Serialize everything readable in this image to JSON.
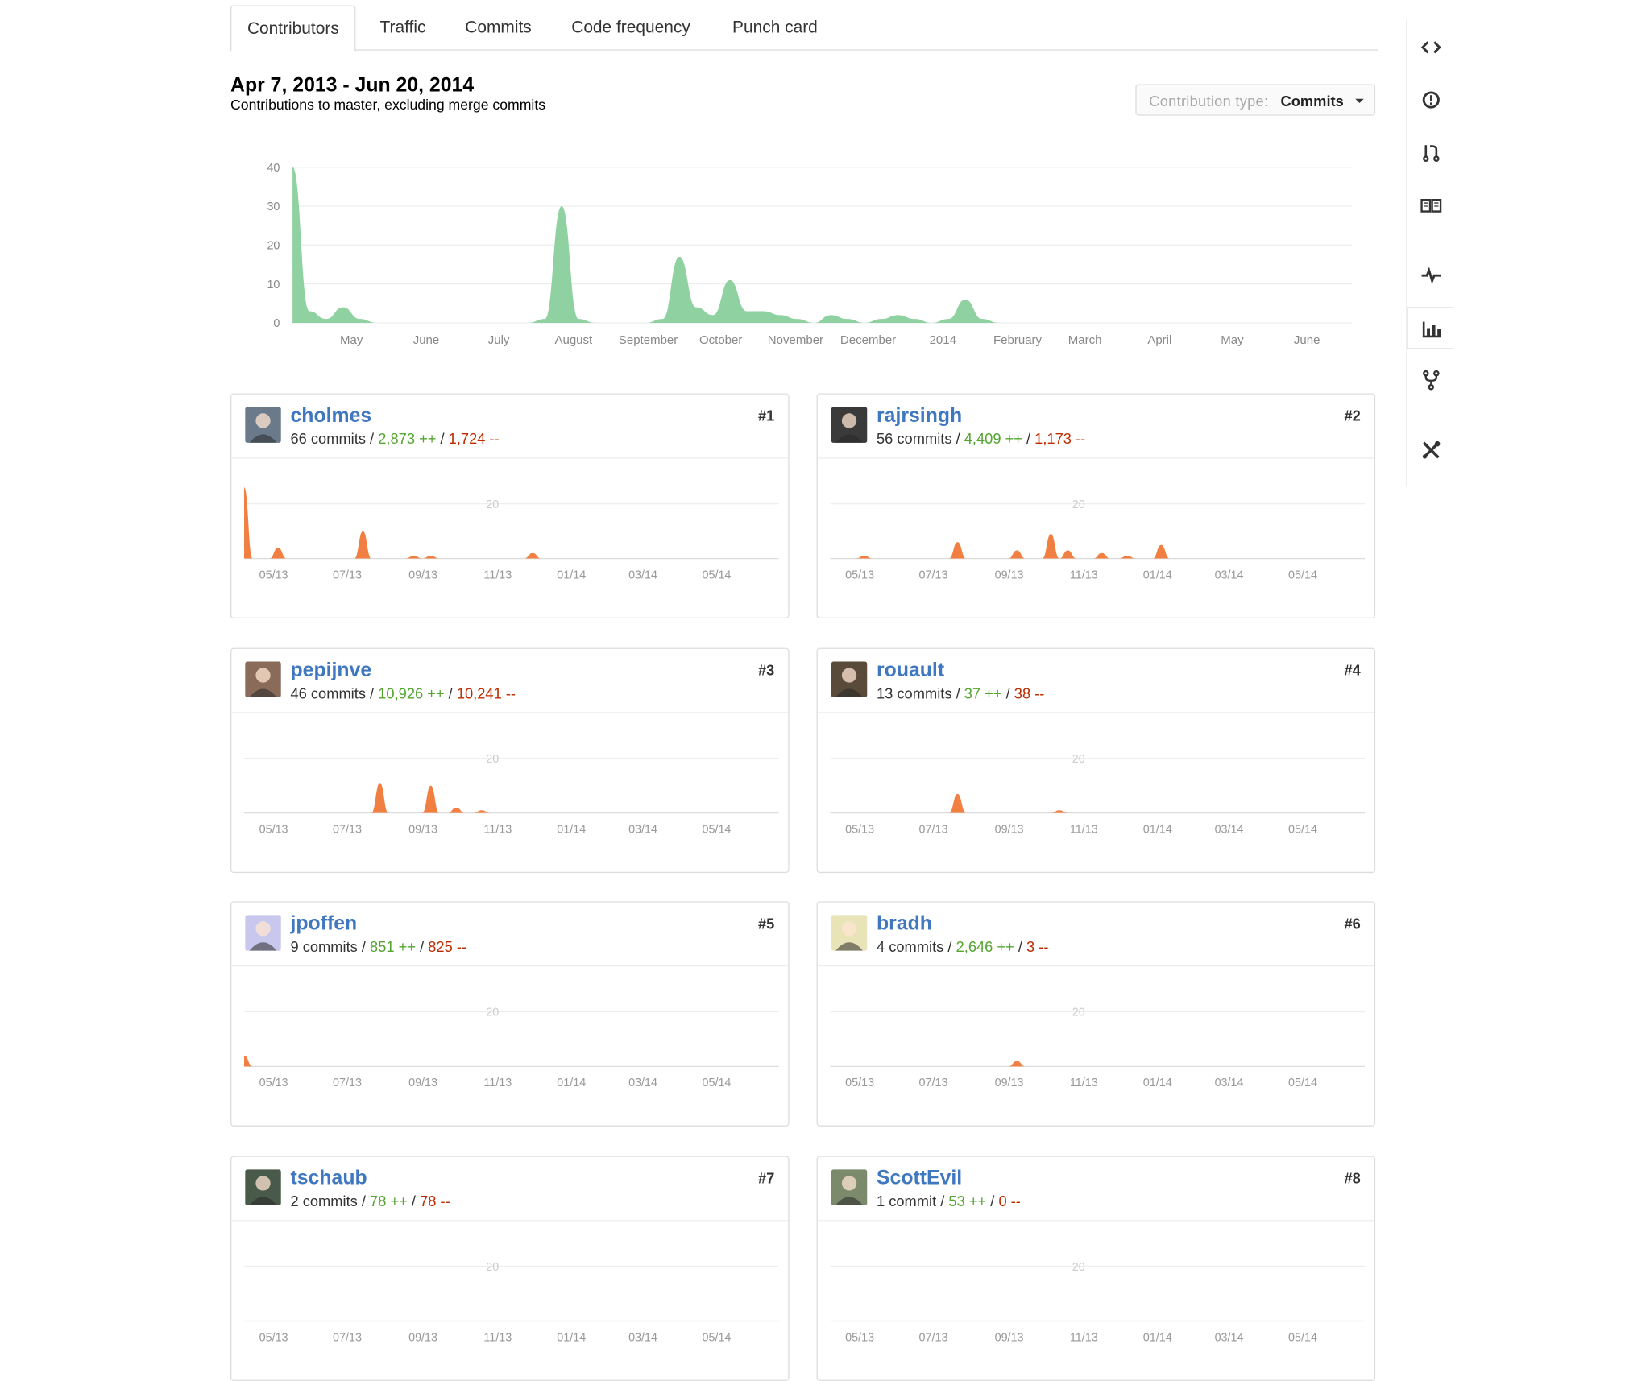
{
  "tabs": [
    {
      "label": "Contributors",
      "selected": true
    },
    {
      "label": "Traffic",
      "selected": false
    },
    {
      "label": "Commits",
      "selected": false
    },
    {
      "label": "Code frequency",
      "selected": false
    },
    {
      "label": "Punch card",
      "selected": false
    }
  ],
  "header": {
    "date_range": "Apr 7, 2013 - Jun 20, 2014",
    "subtitle": "Contributions to master, excluding merge commits"
  },
  "contribution_type": {
    "label": "Contribution type:",
    "value": "Commits"
  },
  "sidebar": [
    {
      "icon": "code-icon",
      "selected": false
    },
    {
      "icon": "issues-icon",
      "selected": false
    },
    {
      "icon": "pull-request-icon",
      "selected": false
    },
    {
      "icon": "wiki-icon",
      "selected": false
    },
    {
      "icon": "pulse-icon",
      "selected": false
    },
    {
      "icon": "graphs-icon",
      "selected": true
    },
    {
      "icon": "network-icon",
      "selected": false
    },
    {
      "icon": "settings-icon",
      "selected": false
    }
  ],
  "colors": {
    "main_area": "#8fd1a0",
    "contributor_area": "#f17f42",
    "grid": "#eeeeee",
    "link": "#4078c0",
    "additions": "#55a532",
    "deletions": "#bd2c00"
  },
  "chart_data": {
    "type": "area",
    "yticks": [
      0,
      10,
      20,
      30,
      40
    ],
    "ylim": [
      0,
      40
    ],
    "xticks": [
      "May",
      "June",
      "July",
      "August",
      "September",
      "October",
      "November",
      "December",
      "2014",
      "February",
      "March",
      "April",
      "May",
      "June"
    ],
    "x_weeks": [
      0,
      1,
      2,
      3,
      4,
      5,
      6,
      7,
      8,
      9,
      10,
      11,
      12,
      13,
      14,
      15,
      16,
      17,
      18,
      19,
      20,
      21,
      22,
      23,
      24,
      25,
      26,
      27,
      28,
      29,
      30,
      31,
      32,
      33,
      34,
      35,
      36,
      37,
      38,
      39,
      40,
      41,
      42,
      43,
      44,
      45,
      46,
      47,
      48,
      49,
      50,
      51,
      52,
      53,
      54,
      55,
      56,
      57,
      58,
      59,
      60,
      61,
      62,
      63
    ],
    "values": [
      40,
      3,
      1,
      4,
      1,
      0,
      0,
      0,
      0,
      0,
      0,
      0,
      0,
      0,
      0,
      1,
      30,
      1,
      0,
      0,
      0,
      0,
      1,
      17,
      4,
      2,
      11,
      3,
      3,
      2,
      1,
      0,
      2,
      1,
      0,
      1,
      2,
      1,
      0,
      1,
      6,
      1,
      0,
      0,
      0,
      0,
      0,
      0,
      0,
      0,
      0,
      0,
      0,
      0,
      0,
      0,
      0,
      0,
      0,
      0,
      0,
      0,
      0,
      0
    ]
  },
  "mini_axis": {
    "label_20": "20",
    "ticks": [
      "05/13",
      "07/13",
      "09/13",
      "11/13",
      "01/14",
      "03/14",
      "05/14"
    ]
  },
  "contributors": [
    {
      "rank": "#1",
      "name": "cholmes",
      "commits": "66 commits",
      "additions": "2,873 ++",
      "deletions": "1,724 --",
      "avatar_bg": "#6b7a8a",
      "peaks": [
        [
          0,
          26
        ],
        [
          4,
          4
        ],
        [
          14,
          10
        ],
        [
          20,
          1
        ],
        [
          22,
          1
        ],
        [
          34,
          2
        ]
      ]
    },
    {
      "rank": "#2",
      "name": "rajrsingh",
      "commits": "56 commits",
      "additions": "4,409 ++",
      "deletions": "1,173 --",
      "avatar_bg": "#3a3a3a",
      "peaks": [
        [
          4,
          1
        ],
        [
          15,
          6
        ],
        [
          22,
          3
        ],
        [
          26,
          9
        ],
        [
          28,
          3
        ],
        [
          32,
          2
        ],
        [
          35,
          1
        ],
        [
          39,
          5
        ]
      ]
    },
    {
      "rank": "#3",
      "name": "pepijnve",
      "commits": "46 commits",
      "additions": "10,926 ++",
      "deletions": "10,241 --",
      "avatar_bg": "#8a6b5a",
      "peaks": [
        [
          16,
          11
        ],
        [
          22,
          10
        ],
        [
          25,
          2
        ],
        [
          28,
          1
        ]
      ]
    },
    {
      "rank": "#4",
      "name": "rouault",
      "commits": "13 commits",
      "additions": "37 ++",
      "deletions": "38 --",
      "avatar_bg": "#5a4a3a",
      "peaks": [
        [
          15,
          7
        ],
        [
          27,
          1
        ]
      ]
    },
    {
      "rank": "#5",
      "name": "jpoffen",
      "commits": "9 commits",
      "additions": "851 ++",
      "deletions": "825 --",
      "avatar_bg": "#c8c8ee",
      "peaks": [
        [
          0,
          4
        ]
      ]
    },
    {
      "rank": "#6",
      "name": "bradh",
      "commits": "4 commits",
      "additions": "2,646 ++",
      "deletions": "3 --",
      "avatar_bg": "#e8e4b8",
      "peaks": [
        [
          22,
          2
        ]
      ]
    },
    {
      "rank": "#7",
      "name": "tschaub",
      "commits": "2 commits",
      "additions": "78 ++",
      "deletions": "78 --",
      "avatar_bg": "#4a5a4a",
      "peaks": []
    },
    {
      "rank": "#8",
      "name": "ScottEvil",
      "commits": "1 commit",
      "additions": "53 ++",
      "deletions": "0 --",
      "avatar_bg": "#7a8a6a",
      "peaks": []
    }
  ]
}
